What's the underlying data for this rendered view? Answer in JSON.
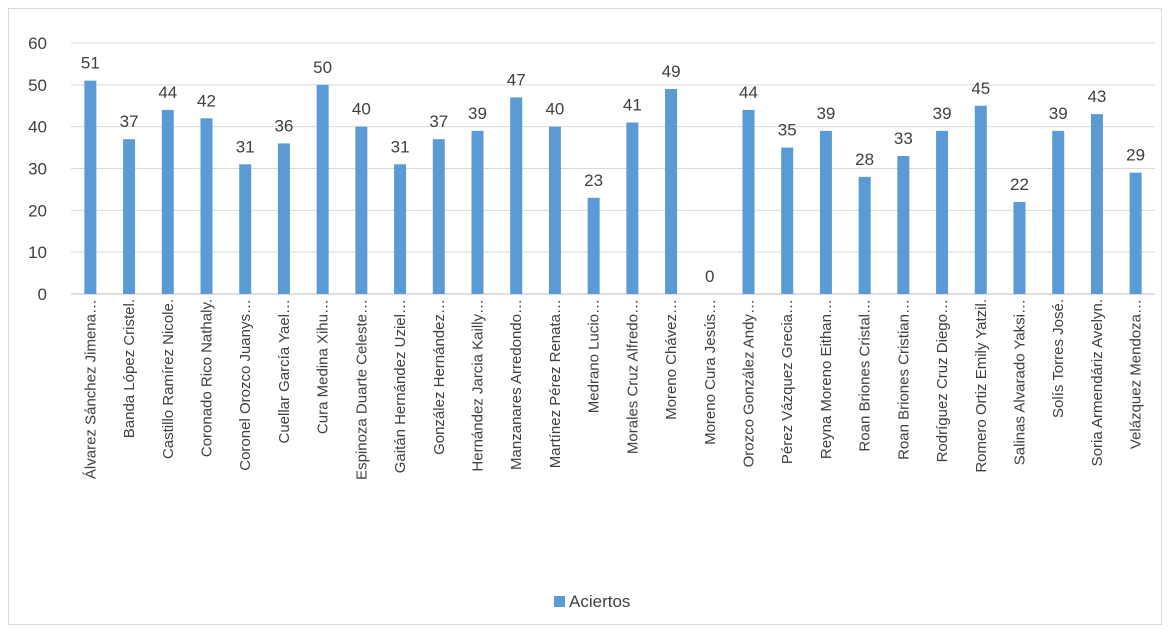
{
  "chart_data": {
    "type": "bar",
    "categories": [
      "Álvarez Sánchez Jimena…",
      "Banda López Cristel.",
      "Castillo Ramírez Nicole.",
      "Coronado Rico Nathaly.",
      "Coronel Orozco Juanys…",
      "Cuellar García Yael…",
      "Cura Medina Xihu…",
      "Espinoza Duarte Celeste…",
      "Gaitán Hernández Uziel…",
      "González Hernández…",
      "Hernández Jarcia Kailly…",
      "Manzanares Arredondo…",
      "Martínez Pérez Renata…",
      "Medrano Lucio…",
      "Morales Cruz Alfredo…",
      "Moreno Chávez…",
      "Moreno Cura Jesús…",
      "Orozco González Andy…",
      "Pérez Vázquez Grecia…",
      "Reyna Moreno Eithan…",
      "Roan Briones Cristal…",
      "Roan Briones Cristian…",
      "Rodríguez Cruz Diego…",
      "Romero Ortiz Emily Yatzil.",
      "Salinas Alvarado Yaksi…",
      "Solís Torres José.",
      "Soria Armendáriz Avelyn.",
      "Velázquez Mendoza…"
    ],
    "series": [
      {
        "name": "Aciertos",
        "values": [
          51,
          37,
          44,
          42,
          31,
          36,
          50,
          40,
          31,
          37,
          39,
          47,
          40,
          23,
          41,
          49,
          0,
          44,
          35,
          39,
          28,
          33,
          39,
          45,
          22,
          39,
          43,
          29
        ]
      }
    ],
    "ylim": [
      0,
      60
    ],
    "yticks": [
      0,
      10,
      20,
      30,
      40,
      50,
      60
    ],
    "grid": true,
    "legend_position": "bottom",
    "colors": {
      "bar": "#5b9bd5",
      "grid": "#d9d9d9",
      "axis": "#bfbfbf",
      "text": "#404040"
    }
  }
}
